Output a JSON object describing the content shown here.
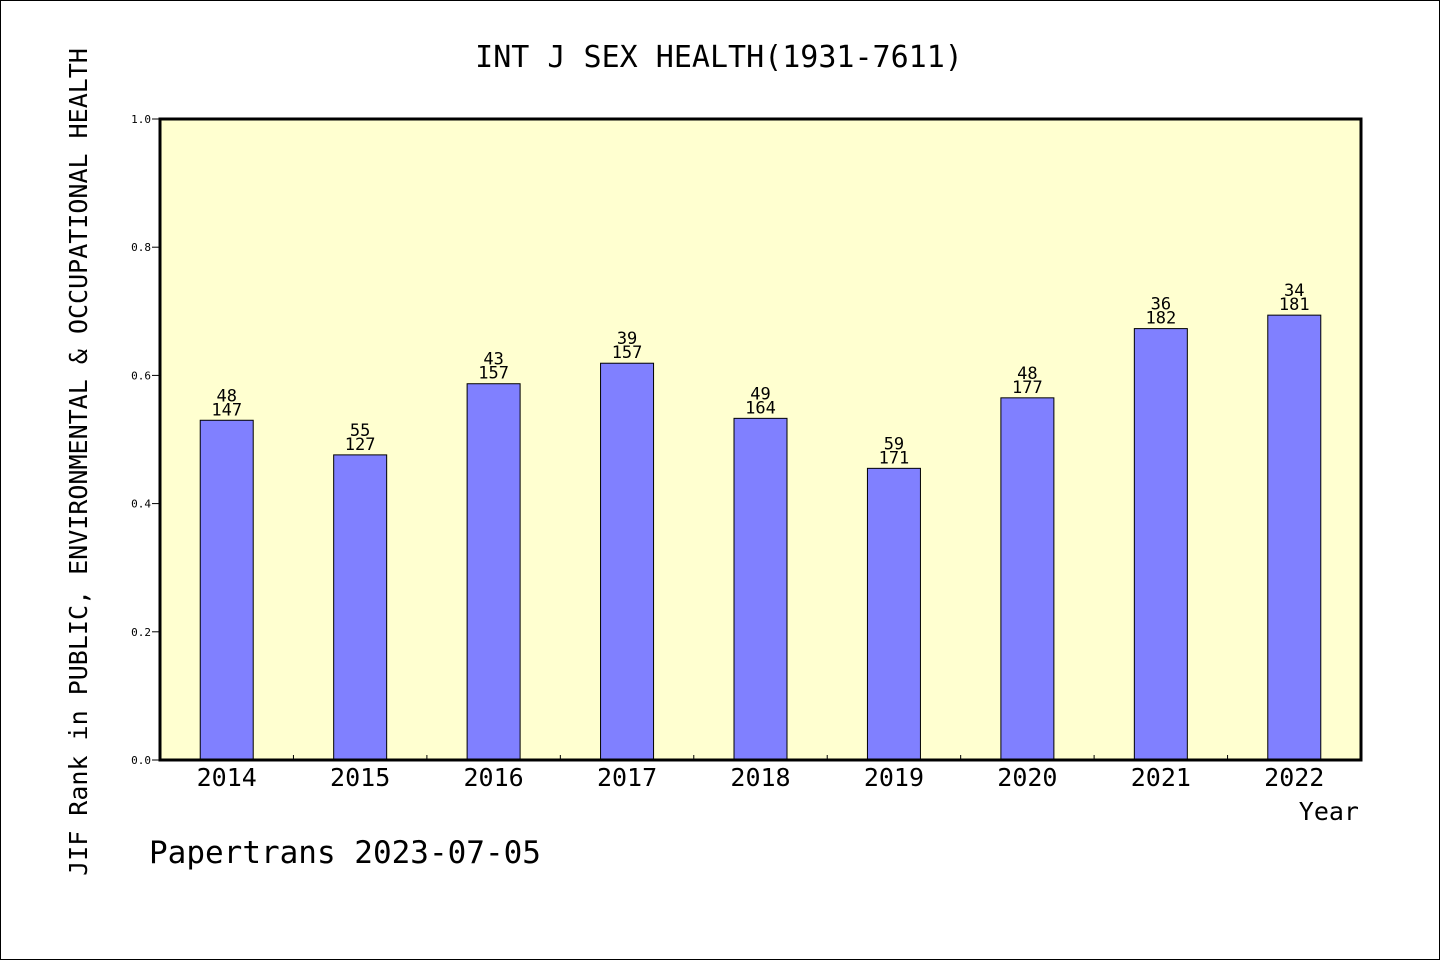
{
  "chart_data": {
    "type": "bar",
    "title": "INT J SEX HEALTH(1931-7611)",
    "xlabel": "Year",
    "ylabel": "JIF Rank in PUBLIC, ENVIRONMENTAL & OCCUPATIONAL HEALTH",
    "footer": "Papertrans 2023-07-05",
    "categories": [
      "2014",
      "2015",
      "2016",
      "2017",
      "2018",
      "2019",
      "2020",
      "2021",
      "2022"
    ],
    "values": [
      0.53,
      0.476,
      0.587,
      0.619,
      0.533,
      0.455,
      0.565,
      0.673,
      0.694
    ],
    "rank_labels": [
      {
        "rank": "48",
        "total": "147"
      },
      {
        "rank": "55",
        "total": "127"
      },
      {
        "rank": "43",
        "total": "157"
      },
      {
        "rank": "39",
        "total": "157"
      },
      {
        "rank": "49",
        "total": "164"
      },
      {
        "rank": "59",
        "total": "171"
      },
      {
        "rank": "48",
        "total": "177"
      },
      {
        "rank": "36",
        "total": "182"
      },
      {
        "rank": "34",
        "total": "181"
      }
    ],
    "ylim": [
      0.0,
      1.0
    ],
    "yticks": [
      "0.0",
      "0.2",
      "0.4",
      "0.6",
      "0.8",
      "1.0"
    ],
    "grid": false,
    "colors": {
      "plot_background": "#FFFFD0",
      "bar_fill": "#8080FF",
      "bar_stroke": "#000000",
      "axis": "#000000"
    }
  }
}
